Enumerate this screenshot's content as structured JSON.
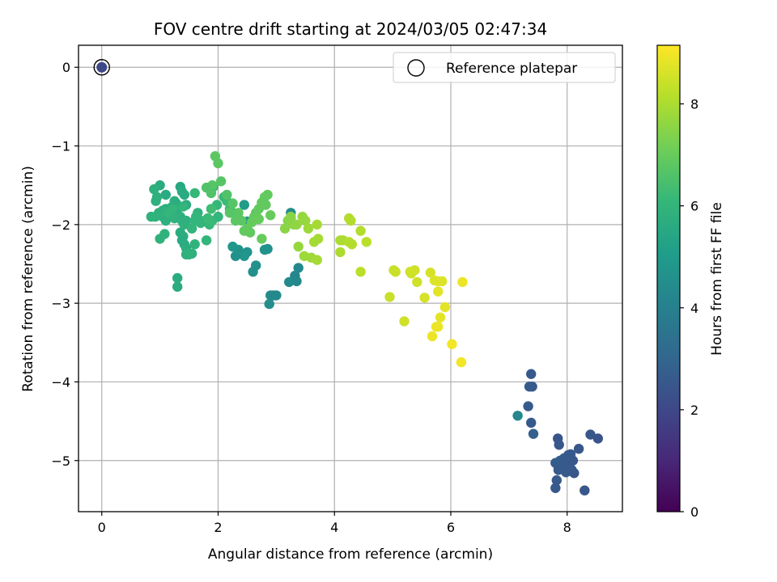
{
  "chart_data": {
    "type": "scatter",
    "title": "FOV centre drift starting at 2024/03/05 02:47:34",
    "xlabel": "Angular distance from reference (arcmin)",
    "ylabel": "Rotation from reference (arcmin)",
    "xlim": [
      -0.4,
      8.95
    ],
    "ylim": [
      -5.65,
      0.28
    ],
    "xticks": [
      0,
      2,
      4,
      6,
      8
    ],
    "xtick_labels": [
      "0",
      "2",
      "4",
      "6",
      "8"
    ],
    "yticks": [
      0,
      -1,
      -2,
      -3,
      -4,
      -5
    ],
    "ytick_labels": [
      "0",
      "−1",
      "−2",
      "−3",
      "−4",
      "−5"
    ],
    "grid": true,
    "legend": {
      "placement": "top-right",
      "entries": [
        "Reference platepar"
      ]
    },
    "reference": {
      "x": 0,
      "y": 0,
      "value": 2.0
    },
    "colorbar": {
      "label": "Hours from first FF file",
      "range": [
        0,
        9.15
      ],
      "ticks": [
        0,
        2,
        4,
        6,
        8
      ],
      "tick_labels": [
        "0",
        "2",
        "4",
        "6",
        "8"
      ],
      "colormap": "viridis",
      "colors": [
        "#440154",
        "#482878",
        "#3e4989",
        "#31688e",
        "#26828e",
        "#1f9e89",
        "#35b779",
        "#6ece58",
        "#b5de2b",
        "#fde725"
      ]
    },
    "series": [
      {
        "x": [
          7.38,
          7.4,
          7.35,
          7.33,
          7.38,
          7.42,
          7.84,
          7.86,
          7.95,
          8.02,
          8.06,
          8.1,
          7.92,
          8.0,
          7.8,
          7.85,
          8.2,
          8.05,
          7.88,
          7.98,
          8.4,
          8.53,
          8.3,
          7.82,
          8.08,
          8.12,
          7.95,
          7.8,
          7.15
        ],
        "y": [
          -3.9,
          -4.06,
          -4.06,
          -4.31,
          -4.52,
          -4.66,
          -4.72,
          -4.8,
          -4.97,
          -4.93,
          -4.92,
          -5.0,
          -5.05,
          -4.98,
          -5.03,
          -5.12,
          -4.85,
          -5.1,
          -5.0,
          -5.15,
          -4.67,
          -4.72,
          -5.38,
          -5.25,
          -5.12,
          -5.16,
          -5.0,
          -5.35,
          -4.43
        ],
        "hue": [
          2.6,
          2.6,
          2.6,
          2.6,
          2.6,
          2.8,
          2.4,
          2.5,
          2.7,
          2.6,
          2.6,
          2.5,
          2.6,
          2.5,
          2.7,
          2.6,
          2.5,
          2.5,
          2.7,
          2.6,
          2.5,
          2.4,
          2.5,
          2.6,
          2.6,
          2.5,
          2.6,
          2.6,
          4.2
        ]
      },
      {
        "x": [
          3.25,
          3.38,
          3.32,
          3.35,
          3.22,
          3.0,
          2.9,
          2.88,
          2.95,
          2.85,
          2.65,
          2.6,
          2.8,
          2.5,
          2.45,
          2.3,
          2.25,
          2.35,
          2.5,
          2.55,
          2.45
        ],
        "y": [
          -1.85,
          -2.55,
          -2.65,
          -2.72,
          -2.73,
          -2.9,
          -2.9,
          -3.01,
          -2.9,
          -2.31,
          -2.52,
          -2.6,
          -2.32,
          -2.35,
          -2.4,
          -2.4,
          -2.28,
          -2.32,
          -1.96,
          -1.97,
          -1.75
        ],
        "hue": [
          4.5,
          4.3,
          4.2,
          4.3,
          4.4,
          4.4,
          4.5,
          4.5,
          4.3,
          4.6,
          4.6,
          4.6,
          4.7,
          4.7,
          4.8,
          4.6,
          4.8,
          4.7,
          4.9,
          4.9,
          5.0
        ]
      },
      {
        "x": [
          0.85,
          0.92,
          0.98,
          1.05,
          1.1,
          1.15,
          1.2,
          1.25,
          1.28,
          1.3,
          1.35,
          1.38,
          1.4,
          1.42,
          1.45,
          1.35,
          1.4,
          1.38,
          1.42,
          1.45,
          1.5,
          1.55,
          1.6,
          1.65,
          1.62,
          1.7,
          1.75,
          1.85,
          1.9,
          1.8,
          1.98,
          2.0,
          1.35,
          1.38,
          1.42,
          1.45,
          1.0,
          1.1,
          1.3,
          1.3,
          1.6,
          0.9,
          0.95,
          1.05,
          1.1,
          1.2,
          1.25,
          1.6,
          1.7,
          1.82,
          1.88,
          1.92,
          1.88,
          2.1,
          2.15,
          2.2,
          2.25,
          1.45,
          1.5,
          1.55,
          0.93,
          1.0,
          1.08,
          1.15,
          1.22,
          1.4
        ],
        "y": [
          -1.9,
          -1.9,
          -1.85,
          -1.82,
          -1.8,
          -1.88,
          -1.78,
          -1.7,
          -1.73,
          -1.8,
          -1.9,
          -1.95,
          -1.98,
          -2.0,
          -1.95,
          -2.1,
          -2.15,
          -2.2,
          -2.25,
          -2.3,
          -2.38,
          -2.37,
          -2.25,
          -1.85,
          -1.9,
          -1.95,
          -1.96,
          -2.0,
          -1.95,
          -2.2,
          -1.75,
          -1.9,
          -1.52,
          -1.58,
          -1.62,
          -1.75,
          -1.5,
          -1.62,
          -2.68,
          -2.79,
          -1.6,
          -1.55,
          -1.65,
          -1.9,
          -1.95,
          -1.88,
          -1.92,
          -1.95,
          -1.98,
          -1.92,
          -1.55,
          -1.52,
          -1.8,
          -1.65,
          -1.7,
          -1.8,
          -1.85,
          -2.38,
          -2.37,
          -2.05,
          -1.7,
          -2.18,
          -2.12,
          -1.85,
          -1.8,
          -1.77
        ],
        "hue": [
          5.9,
          5.9,
          5.9,
          5.8,
          5.8,
          5.9,
          5.7,
          5.8,
          5.7,
          5.7,
          5.8,
          5.8,
          5.9,
          5.9,
          5.8,
          5.7,
          5.7,
          5.6,
          5.6,
          5.7,
          5.7,
          5.8,
          5.9,
          5.9,
          6.0,
          6.0,
          6.1,
          6.1,
          6.2,
          6.0,
          6.1,
          6.0,
          5.5,
          5.6,
          5.6,
          5.7,
          5.6,
          5.6,
          5.6,
          5.6,
          6.1,
          5.8,
          5.8,
          5.9,
          5.8,
          5.9,
          5.9,
          6.0,
          6.0,
          6.2,
          6.2,
          6.2,
          6.3,
          6.1,
          6.2,
          6.3,
          6.3,
          5.8,
          5.9,
          6.0,
          5.8,
          5.9,
          5.9,
          6.0,
          6.0,
          6.0
        ]
      },
      {
        "x": [
          1.95,
          2.0,
          1.9,
          2.05,
          2.15,
          2.25,
          2.35,
          2.4,
          2.45,
          2.55,
          2.6,
          2.65,
          2.7,
          2.75,
          2.8,
          2.85,
          2.9,
          2.75,
          2.62,
          2.5,
          2.58,
          2.7,
          2.82,
          2.2,
          2.3,
          1.8,
          1.88
        ],
        "y": [
          -1.13,
          -1.22,
          -1.5,
          -1.45,
          -1.62,
          -1.73,
          -1.85,
          -1.95,
          -2.08,
          -2.1,
          -1.95,
          -1.85,
          -1.8,
          -1.72,
          -1.65,
          -1.62,
          -1.88,
          -2.18,
          -1.9,
          -2.05,
          -1.97,
          -1.93,
          -1.75,
          -1.85,
          -1.95,
          -1.53,
          -1.6
        ],
        "hue": [
          6.8,
          6.8,
          6.7,
          6.7,
          6.6,
          6.7,
          6.8,
          6.8,
          6.9,
          6.9,
          6.8,
          6.8,
          6.9,
          6.9,
          6.9,
          6.9,
          7.0,
          7.0,
          6.9,
          6.9,
          7.0,
          7.0,
          6.9,
          6.7,
          6.8,
          6.6,
          6.6
        ]
      },
      {
        "x": [
          3.15,
          3.25,
          3.35,
          3.45,
          3.5,
          3.55,
          3.6,
          3.7,
          3.48,
          3.38,
          3.3,
          3.25,
          3.2,
          3.65,
          3.72,
          3.7,
          4.1,
          4.15,
          4.25,
          4.3,
          4.45,
          4.55,
          4.45,
          4.25,
          4.28,
          4.1
        ],
        "y": [
          -2.05,
          -1.92,
          -2.0,
          -1.9,
          -1.95,
          -2.05,
          -2.42,
          -2.45,
          -2.4,
          -2.28,
          -2.0,
          -1.9,
          -1.95,
          -2.22,
          -2.18,
          -2.0,
          -2.35,
          -2.2,
          -2.22,
          -2.25,
          -2.08,
          -2.22,
          -2.6,
          -1.92,
          -1.95,
          -2.2
        ],
        "hue": [
          7.5,
          7.6,
          7.6,
          7.7,
          7.7,
          7.8,
          7.8,
          7.9,
          7.8,
          7.7,
          7.6,
          7.5,
          7.5,
          7.9,
          7.9,
          7.9,
          8.0,
          8.0,
          8.1,
          8.1,
          8.1,
          8.2,
          8.2,
          8.1,
          8.1,
          8.0
        ],
        "size": 1
      },
      {
        "x": [
          4.95,
          5.02,
          5.05,
          5.2,
          5.32,
          5.38,
          5.42,
          5.55,
          5.65,
          5.72,
          5.78,
          5.85,
          5.78,
          5.82,
          5.9,
          5.75,
          5.68,
          5.78,
          6.02,
          6.18,
          6.2,
          5.3
        ],
        "y": [
          -2.92,
          -2.58,
          -2.6,
          -3.23,
          -2.62,
          -2.58,
          -2.73,
          -2.93,
          -2.61,
          -2.71,
          -2.72,
          -2.72,
          -2.85,
          -3.18,
          -3.05,
          -3.3,
          -3.42,
          -3.3,
          -3.52,
          -3.75,
          -2.73,
          -2.6
        ],
        "hue": [
          8.4,
          8.4,
          8.4,
          8.5,
          8.5,
          8.5,
          8.5,
          8.6,
          8.6,
          8.7,
          8.7,
          8.7,
          8.8,
          8.8,
          8.8,
          8.9,
          8.9,
          8.9,
          9.0,
          9.0,
          8.9,
          8.5
        ]
      }
    ]
  }
}
